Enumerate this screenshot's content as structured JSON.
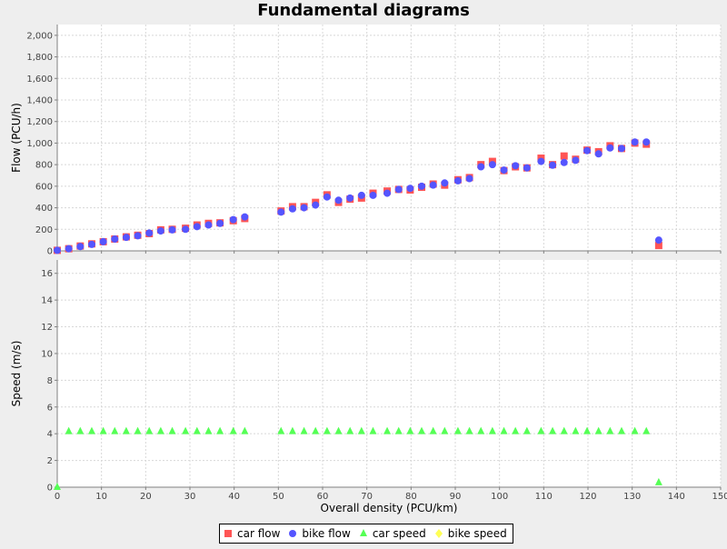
{
  "title": "Fundamental diagrams",
  "colors": {
    "car_flow": "#ff5555",
    "bike_flow": "#5555ff",
    "car_speed": "#55ff55",
    "bike_speed": "#ffff55",
    "background": "#eeeeee",
    "plot_background": "#ffffff",
    "grid": "#d8d8d8"
  },
  "legend": {
    "placement": "bottom-center",
    "items": [
      {
        "label": "car flow",
        "icon": "square-marker",
        "color": "#ff5555"
      },
      {
        "label": "bike flow",
        "icon": "circle-marker",
        "color": "#5555ff"
      },
      {
        "label": "car speed",
        "icon": "triangle-marker",
        "color": "#55ff55"
      },
      {
        "label": "bike speed",
        "icon": "diamond-marker",
        "color": "#ffff55"
      }
    ]
  },
  "chart_data": [
    {
      "type": "scatter",
      "xlabel": "",
      "ylabel": "Flow (PCU/h)",
      "xlim": [
        0,
        150
      ],
      "ylim": [
        0,
        2100
      ],
      "x_ticks": [
        0,
        10,
        20,
        30,
        40,
        50,
        60,
        70,
        80,
        90,
        100,
        110,
        120,
        130,
        140,
        150
      ],
      "y_ticks": [
        0,
        200,
        400,
        600,
        800,
        1000,
        1200,
        1400,
        1600,
        1800,
        2000
      ],
      "y_tick_labels": [
        "0",
        "200",
        "400",
        "600",
        "800",
        "1,000",
        "1,200",
        "1,400",
        "1,600",
        "1,800",
        "2,000"
      ],
      "grid": true,
      "series": [
        {
          "name": "car flow",
          "marker": "square",
          "points": [
            [
              0,
              5
            ],
            [
              2.6,
              20
            ],
            [
              5.2,
              45
            ],
            [
              7.8,
              65
            ],
            [
              10.4,
              85
            ],
            [
              13.0,
              110
            ],
            [
              15.6,
              130
            ],
            [
              18.2,
              145
            ],
            [
              20.8,
              160
            ],
            [
              23.4,
              195
            ],
            [
              26.0,
              200
            ],
            [
              29.0,
              210
            ],
            [
              31.6,
              240
            ],
            [
              34.2,
              255
            ],
            [
              36.8,
              260
            ],
            [
              39.8,
              280
            ],
            [
              42.4,
              300
            ],
            [
              50.6,
              370
            ],
            [
              53.2,
              410
            ],
            [
              55.8,
              410
            ],
            [
              58.4,
              450
            ],
            [
              61.0,
              520
            ],
            [
              63.6,
              450
            ],
            [
              66.2,
              480
            ],
            [
              68.8,
              490
            ],
            [
              71.4,
              535
            ],
            [
              74.6,
              555
            ],
            [
              77.2,
              570
            ],
            [
              79.8,
              565
            ],
            [
              82.4,
              590
            ],
            [
              85.0,
              620
            ],
            [
              87.6,
              610
            ],
            [
              90.6,
              660
            ],
            [
              93.2,
              680
            ],
            [
              95.8,
              800
            ],
            [
              98.4,
              830
            ],
            [
              101.0,
              745
            ],
            [
              103.6,
              780
            ],
            [
              106.2,
              770
            ],
            [
              109.4,
              860
            ],
            [
              112.0,
              800
            ],
            [
              114.6,
              880
            ],
            [
              117.2,
              850
            ],
            [
              119.8,
              935
            ],
            [
              122.4,
              920
            ],
            [
              125.0,
              975
            ],
            [
              127.6,
              950
            ],
            [
              130.6,
              1000
            ],
            [
              133.2,
              990
            ],
            [
              136.0,
              50
            ]
          ]
        },
        {
          "name": "bike flow",
          "marker": "circle",
          "points": [
            [
              0,
              5
            ],
            [
              2.6,
              20
            ],
            [
              5.2,
              40
            ],
            [
              7.8,
              60
            ],
            [
              10.4,
              85
            ],
            [
              13.0,
              110
            ],
            [
              15.6,
              125
            ],
            [
              18.2,
              140
            ],
            [
              20.8,
              165
            ],
            [
              23.4,
              185
            ],
            [
              26.0,
              195
            ],
            [
              29.0,
              200
            ],
            [
              31.6,
              225
            ],
            [
              34.2,
              240
            ],
            [
              36.8,
              255
            ],
            [
              39.8,
              290
            ],
            [
              42.4,
              315
            ],
            [
              50.6,
              360
            ],
            [
              53.2,
              390
            ],
            [
              55.8,
              400
            ],
            [
              58.4,
              425
            ],
            [
              61.0,
              500
            ],
            [
              63.6,
              470
            ],
            [
              66.2,
              490
            ],
            [
              68.8,
              515
            ],
            [
              71.4,
              515
            ],
            [
              74.6,
              535
            ],
            [
              77.2,
              570
            ],
            [
              79.8,
              580
            ],
            [
              82.4,
              600
            ],
            [
              85.0,
              610
            ],
            [
              87.6,
              630
            ],
            [
              90.6,
              650
            ],
            [
              93.2,
              670
            ],
            [
              95.8,
              780
            ],
            [
              98.4,
              800
            ],
            [
              101.0,
              750
            ],
            [
              103.6,
              790
            ],
            [
              106.2,
              770
            ],
            [
              109.4,
              830
            ],
            [
              112.0,
              795
            ],
            [
              114.6,
              820
            ],
            [
              117.2,
              840
            ],
            [
              119.8,
              930
            ],
            [
              122.4,
              900
            ],
            [
              125.0,
              955
            ],
            [
              127.6,
              950
            ],
            [
              130.6,
              1010
            ],
            [
              133.2,
              1010
            ],
            [
              136.0,
              100
            ]
          ]
        }
      ]
    },
    {
      "type": "scatter",
      "xlabel": "Overall density (PCU/km)",
      "ylabel": "Speed (m/s)",
      "xlim": [
        0,
        150
      ],
      "ylim": [
        0,
        17
      ],
      "x_ticks": [
        0,
        10,
        20,
        30,
        40,
        50,
        60,
        70,
        80,
        90,
        100,
        110,
        120,
        130,
        140,
        150
      ],
      "x_tick_labels": [
        "0",
        "10",
        "20",
        "30",
        "40",
        "50",
        "60",
        "70",
        "80",
        "90",
        "100",
        "110",
        "120",
        "130",
        "140",
        "150"
      ],
      "y_ticks": [
        0,
        2,
        4,
        6,
        8,
        10,
        12,
        14,
        16
      ],
      "y_tick_labels": [
        "0",
        "2",
        "4",
        "6",
        "8",
        "10",
        "12",
        "14",
        "16"
      ],
      "grid": true,
      "series": [
        {
          "name": "car speed",
          "marker": "triangle",
          "points": [
            [
              0,
              0
            ],
            [
              2.6,
              4.17
            ],
            [
              5.2,
              4.17
            ],
            [
              7.8,
              4.17
            ],
            [
              10.4,
              4.17
            ],
            [
              13.0,
              4.17
            ],
            [
              15.6,
              4.17
            ],
            [
              18.2,
              4.17
            ],
            [
              20.8,
              4.17
            ],
            [
              23.4,
              4.17
            ],
            [
              26.0,
              4.17
            ],
            [
              29.0,
              4.17
            ],
            [
              31.6,
              4.17
            ],
            [
              34.2,
              4.17
            ],
            [
              36.8,
              4.17
            ],
            [
              39.8,
              4.17
            ],
            [
              42.4,
              4.17
            ],
            [
              50.6,
              4.17
            ],
            [
              53.2,
              4.17
            ],
            [
              55.8,
              4.17
            ],
            [
              58.4,
              4.17
            ],
            [
              61.0,
              4.17
            ],
            [
              63.6,
              4.17
            ],
            [
              66.2,
              4.17
            ],
            [
              68.8,
              4.17
            ],
            [
              71.4,
              4.17
            ],
            [
              74.6,
              4.17
            ],
            [
              77.2,
              4.17
            ],
            [
              79.8,
              4.17
            ],
            [
              82.4,
              4.17
            ],
            [
              85.0,
              4.17
            ],
            [
              87.6,
              4.17
            ],
            [
              90.6,
              4.17
            ],
            [
              93.2,
              4.17
            ],
            [
              95.8,
              4.17
            ],
            [
              98.4,
              4.17
            ],
            [
              101.0,
              4.17
            ],
            [
              103.6,
              4.17
            ],
            [
              106.2,
              4.17
            ],
            [
              109.4,
              4.17
            ],
            [
              112.0,
              4.17
            ],
            [
              114.6,
              4.17
            ],
            [
              117.2,
              4.17
            ],
            [
              119.8,
              4.17
            ],
            [
              122.4,
              4.17
            ],
            [
              125.0,
              4.17
            ],
            [
              127.6,
              4.17
            ],
            [
              130.6,
              4.17
            ],
            [
              133.2,
              4.17
            ],
            [
              136.0,
              0.35
            ]
          ]
        },
        {
          "name": "bike speed",
          "marker": "diamond",
          "points": []
        }
      ]
    }
  ]
}
